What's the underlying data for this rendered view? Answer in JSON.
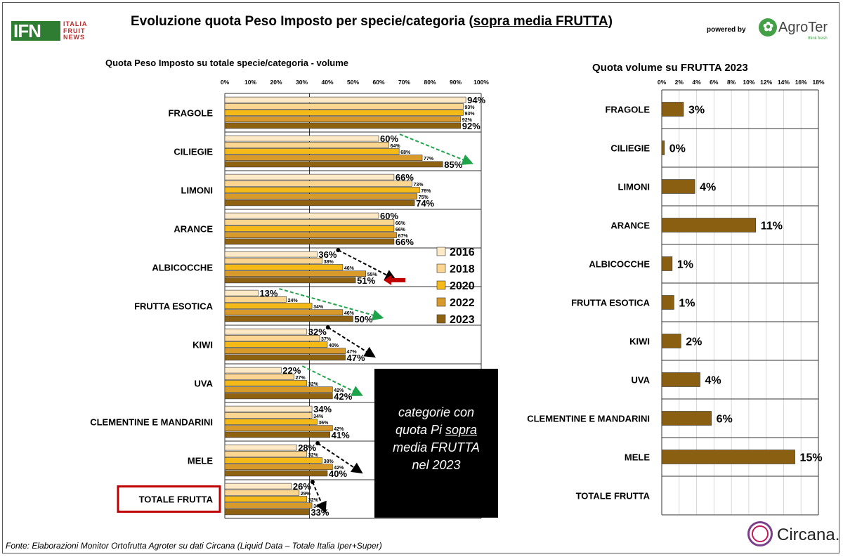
{
  "header": {
    "logo_main": "IFN",
    "logo_lines": [
      "ITALIA",
      "FRUIT",
      "NEWS"
    ],
    "title_part1": "Evoluzione quota Peso Imposto per specie/categoria (",
    "title_underlined": "sopra media FRUTTA",
    "title_part2": ")",
    "powered_by": "powered by",
    "agroter_name": "AgroTer",
    "agroter_tagline": "think fresh"
  },
  "note": {
    "line1": "categorie con",
    "line2_prefix": "quota Pi ",
    "line2_underlined": "sopra",
    "line3": "media FRUTTA",
    "line4": "nel 2023"
  },
  "footer": {
    "source": "Fonte: Elaborazioni Monitor Ortofrutta Agroter su dati  Circana (Liquid Data – Totale Italia Iper+Super)",
    "circana": "Circana."
  },
  "colors": {
    "2016": "#fde9c6",
    "2018": "#fcd590",
    "2020": "#f5b918",
    "2022": "#d99a2c",
    "2023": "#8f6212",
    "right_bar": "#8a5f12",
    "highlight_border": "#c00000",
    "arrow_green": "#1fa34a",
    "arrow_black": "#000000",
    "arrow_red": "#c00000"
  },
  "chart_data": [
    {
      "type": "bar",
      "orientation": "horizontal",
      "title": "Quota Peso Imposto su totale specie/categoria  - volume",
      "xlim": [
        0,
        100
      ],
      "x_ticks": [
        "0%",
        "10%",
        "20%",
        "30%",
        "40%",
        "50%",
        "60%",
        "70%",
        "80%",
        "90%",
        "100%"
      ],
      "reference_line": 33,
      "categories": [
        "FRAGOLE",
        "CILIEGIE",
        "LIMONI",
        "ARANCE",
        "ALBICOCCHE",
        "FRUTTA ESOTICA",
        "KIWI",
        "UVA",
        "CLEMENTINE E MANDARINI",
        "MELE",
        "TOTALE FRUTTA"
      ],
      "highlighted_category": "TOTALE FRUTTA",
      "legend_position": "inside-right",
      "series": [
        {
          "name": "2016",
          "values": [
            94,
            60,
            66,
            60,
            36,
            13,
            32,
            22,
            34,
            28,
            26
          ]
        },
        {
          "name": "2018",
          "values": [
            93,
            64,
            73,
            66,
            38,
            24,
            37,
            27,
            34,
            32,
            29
          ]
        },
        {
          "name": "2020",
          "values": [
            93,
            68,
            76,
            66,
            46,
            34,
            40,
            32,
            36,
            38,
            32
          ]
        },
        {
          "name": "2022",
          "values": [
            92,
            77,
            75,
            67,
            55,
            46,
            47,
            42,
            42,
            42,
            34
          ]
        },
        {
          "name": "2023",
          "values": [
            92,
            85,
            74,
            66,
            51,
            50,
            47,
            42,
            41,
            40,
            33
          ]
        }
      ],
      "trend_arrows": [
        {
          "category": "CILIEGIE",
          "color": "green"
        },
        {
          "category": "ALBICOCCHE",
          "color": "black"
        },
        {
          "category": "FRUTTA ESOTICA",
          "color": "green"
        },
        {
          "category": "KIWI",
          "color": "black"
        },
        {
          "category": "UVA",
          "color": "green"
        },
        {
          "category": "MELE",
          "color": "black"
        },
        {
          "category": "TOTALE FRUTTA",
          "color": "black"
        }
      ],
      "red_arrow_category": "ALBICOCCHE"
    },
    {
      "type": "bar",
      "orientation": "horizontal",
      "title": "Quota volume su FRUTTA 2023",
      "xlim": [
        0,
        18
      ],
      "x_ticks": [
        "0%",
        "2%",
        "4%",
        "6%",
        "8%",
        "10%",
        "12%",
        "14%",
        "16%",
        "18%"
      ],
      "categories": [
        "FRAGOLE",
        "CILIEGIE",
        "LIMONI",
        "ARANCE",
        "ALBICOCCHE",
        "FRUTTA ESOTICA",
        "KIWI",
        "UVA",
        "CLEMENTINE E MANDARINI",
        "MELE",
        "TOTALE FRUTTA"
      ],
      "values": [
        2.5,
        0.3,
        3.8,
        10.8,
        1.2,
        1.4,
        2.2,
        4.4,
        5.7,
        15.3,
        null
      ],
      "labels": [
        "3%",
        "0%",
        "4%",
        "11%",
        "1%",
        "1%",
        "2%",
        "4%",
        "6%",
        "15%",
        ""
      ]
    }
  ]
}
